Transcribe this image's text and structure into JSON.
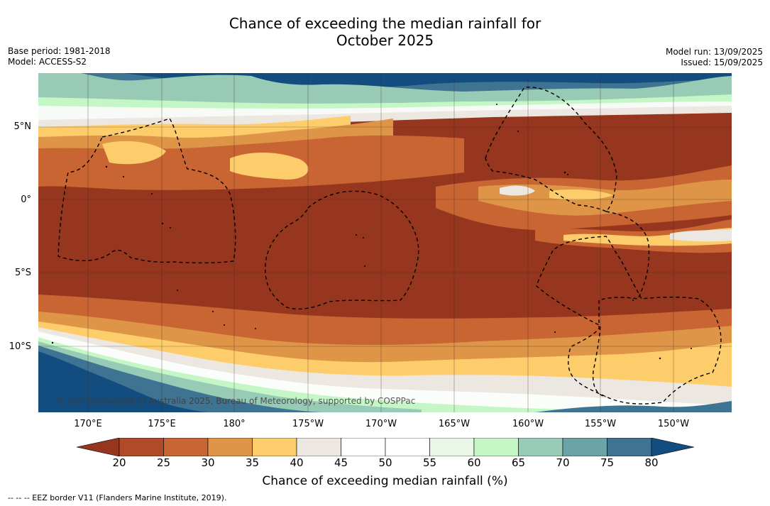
{
  "title_line1": "Chance of exceeding the median rainfall for",
  "title_line2": "October 2025",
  "base_period": "Base period: 1981-2018",
  "model": "Model: ACCESS-S2",
  "model_run": "Model run: 13/09/2025",
  "issued": "Issued: 15/09/2025",
  "credit": "© Commonwealth of Australia 2025, Bureau of Meteorology, supported by COSPPac",
  "footnote": "--  --  -- EEZ border V11 (Flanders Marine Institute, 2019).",
  "latitude_labels": [
    "5°N",
    "0°",
    "5°S",
    "10°S"
  ],
  "longitude_labels": [
    "170°E",
    "175°E",
    "180°",
    "175°W",
    "170°W",
    "165°W",
    "160°W",
    "155°W",
    "150°W"
  ],
  "colorbar": {
    "label": "Chance of exceeding median rainfall (%)",
    "ticks": [
      "20",
      "25",
      "30",
      "35",
      "40",
      "45",
      "50",
      "55",
      "60",
      "65",
      "70",
      "75",
      "80"
    ],
    "colors": [
      "#96361f",
      "#b04a2a",
      "#c96433",
      "#de9548",
      "#fecd6b",
      "#ede7e2",
      "#ffffff",
      "#ffffff",
      "#e9f6e8",
      "#c5f7c6",
      "#98cbb5",
      "#6ba3a6",
      "#3e7391",
      "#134d7f",
      "#0c3f78"
    ],
    "under_color": "#96361f",
    "over_color": "#134d7f"
  },
  "legend": {
    "eez_border": "EEZ border V11"
  }
}
